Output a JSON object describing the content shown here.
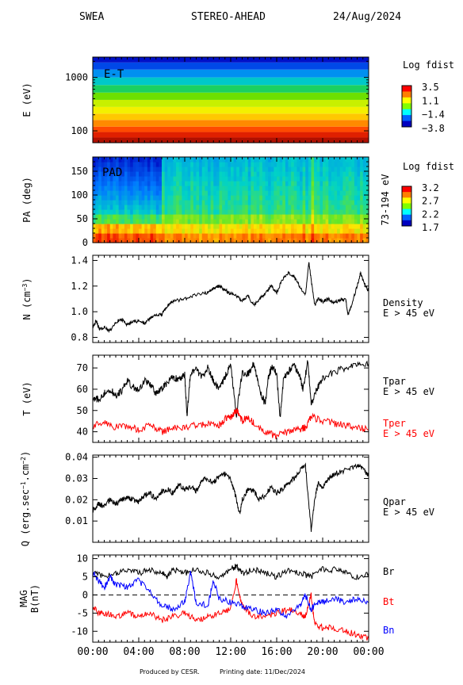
{
  "header": {
    "instrument": "SWEA",
    "spacecraft": "STEREO-AHEAD",
    "date": "24/Aug/2024"
  },
  "footer": {
    "produced_by": "Produced by CESR.",
    "printing_date": "Printing date: 11/Dec/2024"
  },
  "time_axis": {
    "ticks": [
      "00:00",
      "04:00",
      "08:00",
      "12:00",
      "16:00",
      "20:00",
      "00:00"
    ],
    "range_hours": [
      0,
      24
    ]
  },
  "chart_data": [
    {
      "id": "energy",
      "type": "heatmap",
      "panel_label": "E-T",
      "ylabel": "E (eV)",
      "yscale": "log",
      "yticks": [
        "1000",
        "100"
      ],
      "ylim": [
        60,
        2400
      ],
      "colorbar": {
        "title": "Log fdist",
        "ticks": [
          "3.5",
          "1.1",
          "−1.4",
          "−3.8"
        ]
      },
      "energy_bands": [
        {
          "lo": 60,
          "hi": 75,
          "color": "#b01000"
        },
        {
          "lo": 75,
          "hi": 95,
          "color": "#e02000"
        },
        {
          "lo": 95,
          "hi": 120,
          "color": "#ff4a00"
        },
        {
          "lo": 120,
          "hi": 160,
          "color": "#ff8a00"
        },
        {
          "lo": 160,
          "hi": 210,
          "color": "#ffc800"
        },
        {
          "lo": 210,
          "hi": 280,
          "color": "#f4f000"
        },
        {
          "lo": 280,
          "hi": 380,
          "color": "#c8f000"
        },
        {
          "lo": 380,
          "hi": 520,
          "color": "#6de000"
        },
        {
          "lo": 520,
          "hi": 720,
          "color": "#1bd060"
        },
        {
          "lo": 720,
          "hi": 1000,
          "color": "#00c8c8"
        },
        {
          "lo": 1000,
          "hi": 1400,
          "color": "#0090f0"
        },
        {
          "lo": 1400,
          "hi": 1900,
          "color": "#0048e8"
        },
        {
          "lo": 1900,
          "hi": 2400,
          "color": "#0010c8"
        }
      ]
    },
    {
      "id": "pad",
      "type": "heatmap",
      "panel_label": "PAD",
      "ylabel": "PA (deg)",
      "yticks": [
        0,
        50,
        100,
        150
      ],
      "ylim": [
        0,
        180
      ],
      "right_label": "73-194 eV",
      "colorbar": {
        "title": "Log fdist",
        "ticks": [
          "3.2",
          "2.7",
          "2.2",
          "1.7"
        ]
      }
    },
    {
      "id": "density",
      "type": "line",
      "ylabel": "N (cm",
      "ylabel_sup": "−3",
      "ylabel_end": ")",
      "yticks": [
        0.8,
        1.0,
        1.2,
        1.4
      ],
      "ylim": [
        0.76,
        1.44
      ],
      "labels": [
        {
          "text": "Density",
          "color": "#000000"
        },
        {
          "text": "E > 45 eV",
          "color": "#000000"
        }
      ],
      "series": [
        {
          "color": "#000000",
          "x": [
            0,
            0.3,
            0.6,
            1,
            1.5,
            2,
            2.5,
            3,
            3.5,
            4,
            4.5,
            5,
            5.5,
            6,
            6.5,
            7,
            8,
            9,
            10,
            10.5,
            11,
            11.5,
            12,
            12.5,
            13,
            13.5,
            14,
            14.5,
            15,
            15.5,
            16,
            16.5,
            17,
            17.5,
            18,
            18.5,
            18.8,
            19,
            19.3,
            19.6,
            20,
            20.5,
            21,
            21.5,
            22,
            22.2,
            22.5,
            23,
            23.3,
            23.6,
            24
          ],
          "y": [
            0.88,
            0.93,
            0.86,
            0.88,
            0.85,
            0.92,
            0.94,
            0.9,
            0.92,
            0.93,
            0.91,
            0.95,
            0.97,
            0.98,
            1.05,
            1.08,
            1.1,
            1.13,
            1.15,
            1.18,
            1.2,
            1.17,
            1.14,
            1.12,
            1.08,
            1.12,
            1.05,
            1.1,
            1.14,
            1.2,
            1.15,
            1.25,
            1.3,
            1.27,
            1.2,
            1.13,
            1.38,
            1.25,
            1.05,
            1.1,
            1.08,
            1.1,
            1.07,
            1.09,
            1.1,
            0.97,
            1.05,
            1.2,
            1.3,
            1.22,
            1.16
          ]
        }
      ]
    },
    {
      "id": "temperature",
      "type": "line",
      "ylabel": "T (eV)",
      "yticks": [
        40,
        50,
        60,
        70
      ],
      "ylim": [
        35,
        76
      ],
      "labels": [
        {
          "text": "Tpar",
          "color": "#000000"
        },
        {
          "text": "E > 45 eV",
          "color": "#000000"
        },
        {
          "text": "Tper",
          "color": "#ff0000"
        },
        {
          "text": "E > 45 eV",
          "color": "#ff0000"
        }
      ],
      "series": [
        {
          "name": "Tpar",
          "color": "#000000",
          "x": [
            0,
            0.5,
            1,
            1.5,
            2,
            2.5,
            3,
            3.5,
            4,
            4.5,
            5,
            5.5,
            6,
            6.5,
            7,
            7.5,
            8,
            8.2,
            8.5,
            9,
            9.5,
            10,
            10.5,
            11,
            11.5,
            12,
            12.5,
            13,
            13.5,
            14,
            14.5,
            15,
            15.3,
            15.6,
            16,
            16.3,
            16.6,
            17,
            17.5,
            18,
            18.3,
            18.7,
            19,
            19.5,
            20,
            21,
            22,
            23,
            24
          ],
          "y": [
            56,
            55,
            58,
            60,
            57,
            59,
            64,
            61,
            60,
            64,
            62,
            58,
            60,
            63,
            66,
            64,
            67,
            47,
            68,
            69,
            66,
            70,
            64,
            60,
            66,
            71,
            48,
            68,
            67,
            72,
            60,
            53,
            66,
            71,
            67,
            46,
            65,
            68,
            72,
            66,
            60,
            73,
            53,
            60,
            65,
            68,
            70,
            71,
            72
          ]
        },
        {
          "name": "Tper",
          "color": "#ff0000",
          "x": [
            0,
            1,
            2,
            3,
            4,
            5,
            6,
            7,
            8,
            9,
            10,
            11,
            11.5,
            12,
            12.5,
            13,
            13.5,
            14,
            15,
            16,
            17,
            18,
            18.5,
            19,
            20,
            21,
            22,
            23,
            24
          ],
          "y": [
            43,
            44,
            42,
            43,
            41,
            43,
            40,
            42,
            42,
            43,
            44,
            43,
            46,
            47,
            50,
            45,
            47,
            44,
            40,
            38,
            40,
            41,
            42,
            47,
            45,
            44,
            43,
            42,
            41
          ]
        }
      ]
    },
    {
      "id": "heatflux",
      "type": "line",
      "ylabel": "Q (erg.sec",
      "ylabel_sup": "−1",
      "ylabel_mid": ".cm",
      "ylabel_sup2": "−2",
      "ylabel_end": ")",
      "yticks": [
        0.01,
        0.02,
        0.03,
        0.04
      ],
      "ylim": [
        0.0,
        0.041
      ],
      "labels": [
        {
          "text": "Qpar",
          "color": "#000000"
        },
        {
          "text": "E > 45 eV",
          "color": "#000000"
        }
      ],
      "series": [
        {
          "color": "#000000",
          "x": [
            0,
            0.5,
            1,
            1.5,
            2,
            2.5,
            3,
            3.5,
            4,
            4.5,
            5,
            5.5,
            6,
            6.5,
            7,
            7.5,
            8,
            8.5,
            9,
            9.5,
            10,
            10.5,
            11,
            11.5,
            12,
            12.5,
            12.8,
            13,
            13.5,
            14,
            14.5,
            15,
            15.5,
            16,
            16.5,
            17,
            17.5,
            18,
            18.5,
            19,
            19.3,
            19.6,
            20,
            20.5,
            21,
            22,
            23,
            23.5,
            24
          ],
          "y": [
            0.015,
            0.018,
            0.017,
            0.02,
            0.018,
            0.02,
            0.021,
            0.02,
            0.019,
            0.022,
            0.023,
            0.02,
            0.024,
            0.025,
            0.023,
            0.027,
            0.025,
            0.026,
            0.024,
            0.029,
            0.03,
            0.028,
            0.031,
            0.032,
            0.03,
            0.02,
            0.013,
            0.02,
            0.025,
            0.024,
            0.02,
            0.022,
            0.026,
            0.023,
            0.025,
            0.028,
            0.03,
            0.034,
            0.036,
            0.006,
            0.02,
            0.028,
            0.025,
            0.03,
            0.032,
            0.034,
            0.036,
            0.035,
            0.031
          ]
        }
      ]
    },
    {
      "id": "mag",
      "type": "line",
      "ylabel": "MAG",
      "ylabel2": "B(nT)",
      "yticks": [
        -10,
        -5,
        0,
        5,
        10
      ],
      "ylim": [
        -13,
        11
      ],
      "zero_line": true,
      "labels": [
        {
          "text": "Br",
          "color": "#000000"
        },
        {
          "text": "Bt",
          "color": "#ff0000"
        },
        {
          "text": "Bn",
          "color": "#0000ff"
        }
      ],
      "series": [
        {
          "name": "Br",
          "color": "#000000",
          "x": [
            0,
            1,
            2,
            3,
            4,
            5,
            6,
            6.5,
            7,
            8,
            9,
            10,
            11,
            12,
            12.5,
            13,
            14,
            15,
            16,
            17,
            18,
            19,
            20,
            21,
            22,
            23,
            24
          ],
          "y": [
            6,
            5,
            6,
            7,
            6,
            7,
            6,
            5,
            7,
            6,
            7,
            6,
            5,
            7,
            8,
            6,
            7,
            6,
            5,
            7,
            6,
            5,
            7,
            7,
            6,
            5,
            6
          ]
        },
        {
          "name": "Bt",
          "color": "#ff0000",
          "x": [
            0,
            0.5,
            1,
            2,
            3,
            4,
            5,
            6,
            7,
            8,
            9,
            10,
            11,
            12,
            12.5,
            13,
            14,
            15,
            16,
            17,
            18,
            18.5,
            19,
            19.3,
            20,
            21,
            22,
            23,
            24
          ],
          "y": [
            -3,
            -5,
            -5,
            -6,
            -5,
            -6,
            -5,
            -7,
            -6,
            -5,
            -7,
            -6,
            -5,
            -4,
            4,
            -3,
            -6,
            -6,
            -5,
            -4,
            -5,
            -6,
            0,
            -8,
            -9,
            -9,
            -10,
            -11,
            -12
          ]
        },
        {
          "name": "Bn",
          "color": "#0000ff",
          "x": [
            0,
            0.5,
            1,
            1.5,
            2,
            3,
            4,
            5,
            6,
            7,
            8,
            8.5,
            9,
            10,
            10.5,
            11,
            12,
            13,
            14,
            15,
            16,
            17,
            18,
            18.5,
            19,
            19.5,
            20,
            21,
            22,
            23,
            24
          ],
          "y": [
            6,
            4,
            2,
            5,
            3,
            2,
            4,
            1,
            -3,
            -4,
            -2,
            6,
            -2,
            -3,
            4,
            -1,
            -2,
            -3,
            -4,
            -5,
            -4,
            -6,
            -3,
            0,
            -4,
            -2,
            -2,
            -1,
            -2,
            -1,
            -2
          ]
        }
      ]
    }
  ]
}
